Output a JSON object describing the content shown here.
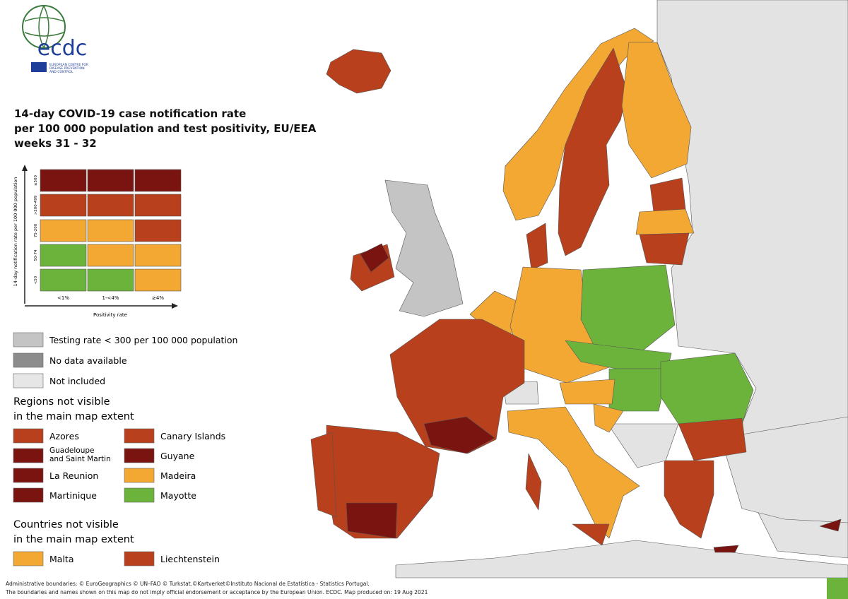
{
  "logo": {
    "name": "ecdc",
    "subtitle": [
      "EUROPEAN CENTRE FOR",
      "DISEASE PREVENTION",
      "AND CONTROL"
    ]
  },
  "title": [
    "14-day COVID-19 case notification rate",
    "per 100 000 population and test positivity, EU/EEA",
    "weeks 31 - 32"
  ],
  "matrix": {
    "y_axis_label": "14-day notification rate per 100 000 population",
    "row_labels": [
      "≥500",
      ">200-499",
      "75-200",
      "50-74",
      "<50"
    ],
    "column_labels": [
      "<1%",
      "1-<4%",
      "≥4%"
    ],
    "x_axis_label": "Positivity rate",
    "colors": [
      [
        "#7a1410",
        "#7a1410",
        "#7a1410"
      ],
      [
        "#b8401c",
        "#b8401c",
        "#b8401c"
      ],
      [
        "#f2a833",
        "#f2a833",
        "#b8401c"
      ],
      [
        "#6cb33c",
        "#f2a833",
        "#f2a833"
      ],
      [
        "#6cb33c",
        "#6cb33c",
        "#f2a833"
      ]
    ]
  },
  "legend": [
    {
      "label": "Testing rate < 300 per 100 000 population",
      "color": "#c4c4c4"
    },
    {
      "label": "No data available",
      "color": "#8c8c8c"
    },
    {
      "label": "Not included",
      "color": "#e6e6e6"
    }
  ],
  "regions": {
    "heading": [
      "Regions not visible",
      "in the main map extent"
    ],
    "items": [
      {
        "label": [
          "Azores"
        ],
        "color": "#b8401c"
      },
      {
        "label": [
          "Canary Islands"
        ],
        "color": "#b8401c"
      },
      {
        "label": [
          "Guadeloupe",
          "and Saint Martin"
        ],
        "color": "#7a1410"
      },
      {
        "label": [
          "Guyane"
        ],
        "color": "#7a1410"
      },
      {
        "label": [
          "La Reunion"
        ],
        "color": "#7a1410"
      },
      {
        "label": [
          "Madeira"
        ],
        "color": "#f2a833"
      },
      {
        "label": [
          "Martinique"
        ],
        "color": "#7a1410"
      },
      {
        "label": [
          "Mayotte"
        ],
        "color": "#6cb33c"
      }
    ]
  },
  "countries": {
    "heading": [
      "Countries not visible",
      "in the main map extent"
    ],
    "items": [
      {
        "label": [
          "Malta"
        ],
        "color": "#f2a833"
      },
      {
        "label": [
          "Liechtenstein"
        ],
        "color": "#b8401c"
      }
    ]
  },
  "footer": [
    "Administrative boundaries: © EuroGeographics © UN–FAO © Turkstat.©Kartverket©Instituto Nacional de Estatística - Statistics Portugal.",
    "The boundaries and names shown on this map do not imply official endorsement or acceptance by the European Union. ECDC. Map produced on: 19 Aug 2021"
  ]
}
